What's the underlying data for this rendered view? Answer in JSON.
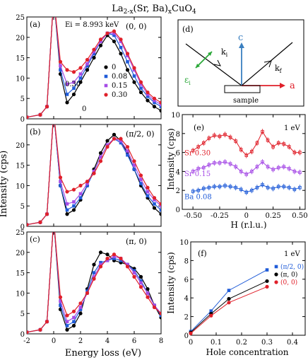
{
  "title_main": "La",
  "title_sub1": "2-x",
  "title_mid": "(Sr, Ba)",
  "title_sub2": "x",
  "title_end": "CuO",
  "title_sub3": "4",
  "colors": {
    "black": "#000000",
    "blue": "#1f5bd8",
    "purple": "#a64ce6",
    "red": "#e0202a",
    "green": "#2aa838",
    "cyan": "#3a7fc0"
  },
  "left": {
    "ylabel": "Intensity (cps)",
    "xlabel": "Energy loss (eV)",
    "xticks": [
      "-2",
      "0",
      "2",
      "4",
      "6",
      "8"
    ],
    "panels": [
      {
        "letter": "(a)",
        "q": "(0, 0)",
        "ei": "Ei = 8.993 keV",
        "yticks": [
          "0",
          "5",
          "10",
          "15",
          "20",
          "25"
        ],
        "legend": [
          "0",
          "0.08",
          "0.15",
          "0.30"
        ],
        "ann1": "0.30",
        "ann2": "0"
      },
      {
        "letter": "(b)",
        "q": "(π/2, 0)",
        "yticks": [
          "0",
          "5",
          "10",
          "15",
          "20"
        ]
      },
      {
        "letter": "(c)",
        "q": "(π, 0)",
        "yticks": [
          "0",
          "5",
          "10",
          "15",
          "20",
          "25"
        ]
      }
    ]
  },
  "d": {
    "letter": "(d)",
    "c": "c",
    "a": "a",
    "ki": "k",
    "ki_sub": "i",
    "kf": "k",
    "kf_sub": "f",
    "eps": "ε",
    "eps_sub": "i",
    "sample": "sample"
  },
  "e": {
    "letter": "(e)",
    "note": "1 eV",
    "ylabel": "Intensity (cps)",
    "xlabel": "H (r.l.u.)",
    "yticks": [
      "0",
      "2",
      "4",
      "6",
      "8",
      "10"
    ],
    "xticks": [
      "-0.50",
      "-0.25",
      "0",
      "0.25",
      "0.50"
    ],
    "labels": [
      "Sr 0.30",
      "Sr 0.15",
      "Ba 0.08"
    ]
  },
  "f": {
    "letter": "(f)",
    "note": "1 eV",
    "ylabel": "Intensity (cps)",
    "xlabel": "Hole concentration",
    "yticks": [
      "0",
      "2",
      "4",
      "6",
      "8",
      "10"
    ],
    "xticks": [
      "0",
      "0.1",
      "0.2",
      "0.3",
      "0.4"
    ],
    "legend": [
      "(π/2, 0)",
      "(π, 0)",
      "(0, 0)"
    ]
  },
  "chart_data": [
    {
      "type": "line",
      "panel": "(a)",
      "title": "(0, 0)",
      "xlabel": "Energy loss (eV)",
      "ylabel": "Intensity (cps)",
      "xlim": [
        -2,
        8
      ],
      "ylim": [
        0,
        25
      ],
      "x": [
        -2,
        -1,
        -0.5,
        0,
        0.5,
        1,
        1.5,
        2,
        2.5,
        3,
        3.5,
        4,
        4.5,
        5,
        5.5,
        6,
        6.5,
        7,
        7.5,
        8
      ],
      "series": [
        {
          "name": "0",
          "values": [
            0.4,
            1,
            3,
            30,
            11,
            4,
            6,
            9,
            12,
            15,
            18,
            20.5,
            19,
            16,
            12,
            9,
            6.5,
            4.5,
            3,
            2
          ]
        },
        {
          "name": "0.08",
          "values": [
            0.4,
            1,
            3,
            30,
            12,
            6,
            7.5,
            10,
            13,
            16,
            19,
            21,
            20.5,
            17.5,
            14,
            10.5,
            7.5,
            5.5,
            4,
            3
          ]
        },
        {
          "name": "0.15",
          "values": [
            0.4,
            1,
            3,
            30,
            13,
            8.5,
            9,
            11,
            13.5,
            16.5,
            19,
            21,
            21,
            19,
            15.5,
            12,
            8.5,
            6,
            4.5,
            3.5
          ]
        },
        {
          "name": "0.30",
          "values": [
            0.4,
            1,
            3,
            30,
            14,
            12,
            11.5,
            12.5,
            14.5,
            17,
            19.5,
            21,
            21.5,
            19.5,
            16,
            12.5,
            9,
            6.5,
            5,
            4
          ]
        }
      ]
    },
    {
      "type": "line",
      "panel": "(b)",
      "title": "(π/2, 0)",
      "xlim": [
        -2,
        8
      ],
      "ylim": [
        0,
        25
      ],
      "x": [
        -2,
        -1,
        -0.5,
        0,
        0.5,
        1,
        1.5,
        2,
        2.5,
        3,
        3.5,
        4,
        4.5,
        5,
        5.5,
        6,
        6.5,
        7,
        7.5,
        8
      ],
      "series": [
        {
          "name": "0",
          "values": [
            0.4,
            1,
            3,
            28,
            10,
            3,
            4,
            6.5,
            10,
            14,
            18,
            21,
            22.5,
            21,
            18,
            14,
            10,
            7,
            4.5,
            3
          ]
        },
        {
          "name": "0.08",
          "values": [
            0.4,
            1,
            3,
            28,
            10,
            4,
            5,
            7,
            10,
            13.5,
            17,
            20,
            21.5,
            20.5,
            17.5,
            14,
            10.5,
            7.5,
            5.5,
            4
          ]
        },
        {
          "name": "0.15",
          "values": [
            0.4,
            1,
            3,
            28,
            11,
            5.5,
            6,
            8,
            10.5,
            13.5,
            17,
            20,
            21.5,
            21,
            18.5,
            15,
            11.5,
            8.5,
            6.5,
            5
          ]
        },
        {
          "name": "0.30",
          "values": [
            0.4,
            1,
            3,
            28,
            12,
            8.5,
            9,
            10,
            11,
            13,
            16,
            19.5,
            21.5,
            21.5,
            19.5,
            16,
            12.5,
            9.5,
            7,
            5.5
          ]
        }
      ]
    },
    {
      "type": "line",
      "panel": "(c)",
      "title": "(π, 0)",
      "xlim": [
        -2,
        8
      ],
      "ylim": [
        0,
        25
      ],
      "x": [
        -2,
        -1,
        -0.5,
        0,
        0.5,
        1,
        1.5,
        2,
        2.5,
        3,
        3.5,
        4,
        4.5,
        5,
        5.5,
        6,
        6.5,
        7,
        7.5,
        8
      ],
      "series": [
        {
          "name": "0",
          "values": [
            0.4,
            1,
            3,
            28,
            6,
            1,
            2,
            5,
            11,
            17,
            20,
            19.5,
            18,
            17.5,
            17,
            16,
            14,
            11,
            7,
            4
          ]
        },
        {
          "name": "0.08",
          "values": [
            0.4,
            1,
            3,
            28,
            7,
            2,
            3,
            6,
            10.5,
            15,
            17.5,
            18,
            18.5,
            18,
            17,
            15.5,
            13,
            10,
            7,
            4.5
          ]
        },
        {
          "name": "0.15",
          "values": [
            0.4,
            1,
            3,
            28,
            8,
            3,
            4,
            6.5,
            10,
            14,
            17,
            18,
            19,
            18.5,
            17,
            15,
            12.5,
            10,
            7,
            5
          ]
        },
        {
          "name": "0.30",
          "values": [
            0.4,
            1,
            3,
            28,
            9,
            4.5,
            5.5,
            7.5,
            10,
            13.5,
            16.5,
            18.5,
            19.5,
            18.5,
            16.5,
            14,
            11.5,
            9,
            6.5,
            5
          ]
        }
      ]
    },
    {
      "type": "scatter",
      "panel": "(e)",
      "xlabel": "H (r.l.u.)",
      "ylabel": "Intensity (cps)",
      "xlim": [
        -0.6,
        0.55
      ],
      "ylim": [
        0,
        10
      ],
      "x": [
        -0.5,
        -0.45,
        -0.4,
        -0.35,
        -0.3,
        -0.25,
        -0.2,
        -0.15,
        -0.1,
        -0.05,
        0,
        0.05,
        0.1,
        0.15,
        0.2,
        0.25,
        0.3,
        0.35,
        0.4,
        0.45,
        0.5
      ],
      "series": [
        {
          "name": "Sr 0.30",
          "values": [
            6.2,
            6.6,
            7.0,
            7.5,
            7.8,
            7.7,
            7.9,
            7.6,
            7.2,
            6.3,
            5.7,
            6.1,
            7.0,
            8.2,
            7.3,
            6.6,
            7.0,
            6.9,
            6.6,
            6.0,
            6.0
          ]
        },
        {
          "name": "Sr 0.15",
          "values": [
            4.0,
            4.3,
            4.4,
            4.7,
            4.9,
            4.9,
            5.0,
            4.8,
            4.5,
            4.0,
            3.7,
            4.0,
            4.5,
            5.0,
            4.5,
            4.2,
            4.4,
            4.5,
            4.3,
            4.0,
            3.9
          ]
        },
        {
          "name": "Ba 0.08",
          "values": [
            1.9,
            2.0,
            2.2,
            2.3,
            2.4,
            2.4,
            2.5,
            2.4,
            2.3,
            2.1,
            1.8,
            2.0,
            2.3,
            2.6,
            2.3,
            2.2,
            2.4,
            2.4,
            2.3,
            2.1,
            2.3
          ]
        }
      ]
    },
    {
      "type": "line",
      "panel": "(f)",
      "xlabel": "Hole concentration",
      "ylabel": "Intensity (cps)",
      "xlim": [
        0,
        0.45
      ],
      "ylim": [
        0,
        10
      ],
      "x": [
        0,
        0.08,
        0.15,
        0.3
      ],
      "series": [
        {
          "name": "(π/2, 0)",
          "values": [
            0.4,
            2.6,
            4.8,
            7.0
          ]
        },
        {
          "name": "(π, 0)",
          "values": [
            0.3,
            2.3,
            3.9,
            5.8
          ]
        },
        {
          "name": "(0, 0)",
          "values": [
            0.2,
            2.1,
            3.5,
            5.2
          ]
        }
      ]
    }
  ]
}
